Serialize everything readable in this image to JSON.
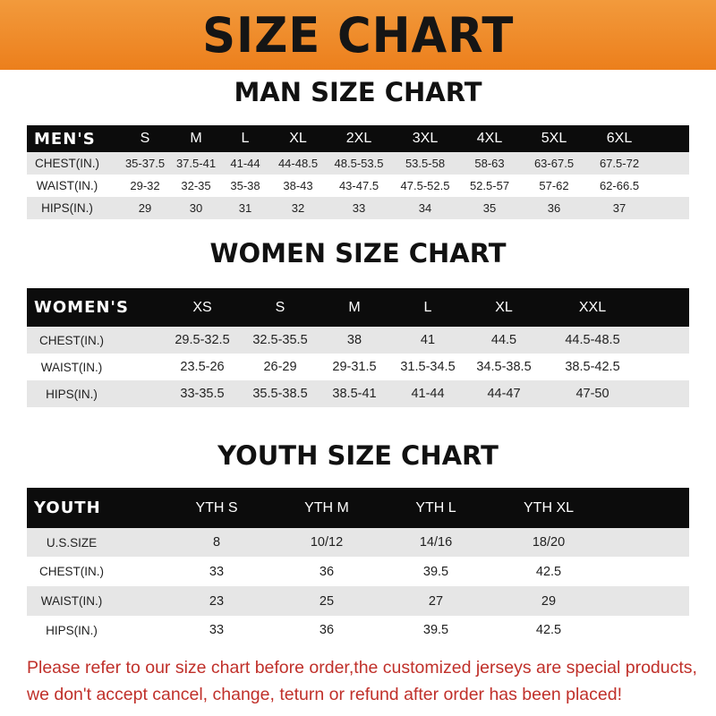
{
  "banner": "SIZE CHART",
  "colors": {
    "banner": "#ee8a2a",
    "header_row": "#0c0c0c",
    "note": "#c0302a"
  },
  "men": {
    "title": "MAN SIZE CHART",
    "header": [
      "MEN'S",
      "S",
      "M",
      "L",
      "XL",
      "2XL",
      "3XL",
      "4XL",
      "5XL",
      "6XL"
    ],
    "rows": [
      [
        "CHEST(IN.)",
        "35-37.5",
        "37.5-41",
        "41-44",
        "44-48.5",
        "48.5-53.5",
        "53.5-58",
        "58-63",
        "63-67.5",
        "67.5-72"
      ],
      [
        "WAIST(IN.)",
        "29-32",
        "32-35",
        "35-38",
        "38-43",
        "43-47.5",
        "47.5-52.5",
        "52.5-57",
        "57-62",
        "62-66.5"
      ],
      [
        "HIPS(IN.)",
        "29",
        "30",
        "31",
        "32",
        "33",
        "34",
        "35",
        "36",
        "37"
      ]
    ]
  },
  "women": {
    "title": "WOMEN SIZE CHART",
    "header": [
      "WOMEN'S",
      "XS",
      "S",
      "M",
      "L",
      "XL",
      "XXL"
    ],
    "rows": [
      [
        "CHEST(IN.)",
        "29.5-32.5",
        "32.5-35.5",
        "38",
        "41",
        "44.5",
        "44.5-48.5"
      ],
      [
        "WAIST(IN.)",
        "23.5-26",
        "26-29",
        "29-31.5",
        "31.5-34.5",
        "34.5-38.5",
        "38.5-42.5"
      ],
      [
        "HIPS(IN.)",
        "33-35.5",
        "35.5-38.5",
        "38.5-41",
        "41-44",
        "44-47",
        "47-50"
      ]
    ]
  },
  "youth": {
    "title": "YOUTH SIZE CHART",
    "header": [
      "YOUTH",
      "YTH S",
      "YTH M",
      "YTH L",
      "YTH XL"
    ],
    "rows": [
      [
        "U.S.SIZE",
        "8",
        "10/12",
        "14/16",
        "18/20"
      ],
      [
        "CHEST(IN.)",
        "33",
        "36",
        "39.5",
        "42.5"
      ],
      [
        "WAIST(IN.)",
        "23",
        "25",
        "27",
        "29"
      ],
      [
        "HIPS(IN.)",
        "33",
        "36",
        "39.5",
        "42.5"
      ]
    ]
  },
  "note": {
    "line1": "Please refer to our size chart before order,the customized jerseys are special products,",
    "line2": "we don't accept cancel, change, teturn or refund after order has been placed!"
  }
}
